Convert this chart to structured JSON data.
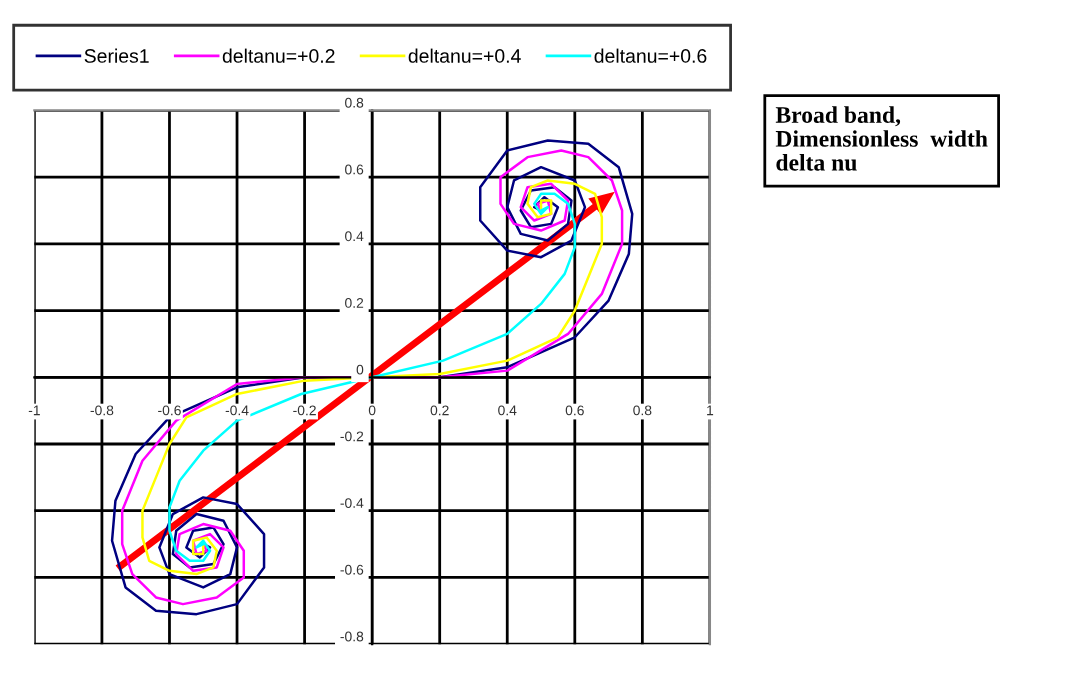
{
  "chart_data": {
    "type": "line",
    "series": [
      {
        "name": "Series1",
        "color": "#000080",
        "x": [
          -0.5,
          -0.48,
          -0.51,
          -0.55,
          -0.53,
          -0.47,
          -0.44,
          -0.47,
          -0.54,
          -0.59,
          -0.58,
          -0.52,
          -0.44,
          -0.4,
          -0.42,
          -0.5,
          -0.6,
          -0.63,
          -0.59,
          -0.5,
          -0.4,
          -0.32,
          -0.32,
          -0.4,
          -0.52,
          -0.64,
          -0.73,
          -0.77,
          -0.76,
          -0.7,
          -0.6,
          -0.4,
          -0.2,
          0,
          0.2,
          0.4,
          0.6,
          0.7,
          0.76,
          0.77,
          0.73,
          0.64,
          0.52,
          0.4,
          0.32,
          0.32,
          0.4,
          0.5,
          0.59,
          0.63,
          0.6,
          0.5,
          0.42,
          0.4,
          0.44,
          0.52,
          0.58,
          0.59,
          0.54,
          0.47,
          0.44,
          0.47,
          0.53,
          0.55,
          0.51,
          0.48,
          0.5
        ],
        "values": [
          -0.5,
          -0.51,
          -0.54,
          -0.51,
          -0.46,
          -0.45,
          -0.5,
          -0.56,
          -0.57,
          -0.53,
          -0.46,
          -0.41,
          -0.43,
          -0.51,
          -0.59,
          -0.63,
          -0.59,
          -0.51,
          -0.41,
          -0.36,
          -0.38,
          -0.47,
          -0.57,
          -0.68,
          -0.71,
          -0.7,
          -0.63,
          -0.49,
          -0.37,
          -0.23,
          -0.12,
          -0.03,
          0,
          0,
          0,
          0.03,
          0.12,
          0.23,
          0.37,
          0.49,
          0.63,
          0.7,
          0.71,
          0.68,
          0.57,
          0.47,
          0.38,
          0.36,
          0.41,
          0.51,
          0.59,
          0.63,
          0.59,
          0.51,
          0.43,
          0.41,
          0.46,
          0.53,
          0.57,
          0.56,
          0.5,
          0.45,
          0.46,
          0.51,
          0.54,
          0.51,
          0.5
        ]
      },
      {
        "name": "deltanu=+0.2",
        "color": "#ff00ff",
        "x": [
          -0.5,
          -0.49,
          -0.52,
          -0.53,
          -0.48,
          -0.44,
          -0.46,
          -0.53,
          -0.58,
          -0.57,
          -0.5,
          -0.42,
          -0.38,
          -0.38,
          -0.46,
          -0.56,
          -0.64,
          -0.71,
          -0.74,
          -0.74,
          -0.68,
          -0.58,
          -0.4,
          -0.2,
          0,
          0.2,
          0.4,
          0.58,
          0.68,
          0.74,
          0.74,
          0.71,
          0.64,
          0.56,
          0.46,
          0.38,
          0.38,
          0.42,
          0.5,
          0.57,
          0.58,
          0.53,
          0.46,
          0.44,
          0.48,
          0.53,
          0.52,
          0.49,
          0.5
        ],
        "values": [
          -0.5,
          -0.52,
          -0.53,
          -0.49,
          -0.47,
          -0.51,
          -0.57,
          -0.58,
          -0.53,
          -0.47,
          -0.44,
          -0.46,
          -0.52,
          -0.6,
          -0.66,
          -0.68,
          -0.66,
          -0.59,
          -0.5,
          -0.4,
          -0.25,
          -0.13,
          -0.02,
          0,
          0,
          0,
          0.02,
          0.13,
          0.25,
          0.4,
          0.5,
          0.59,
          0.66,
          0.68,
          0.66,
          0.6,
          0.52,
          0.46,
          0.44,
          0.47,
          0.53,
          0.58,
          0.57,
          0.51,
          0.47,
          0.49,
          0.53,
          0.52,
          0.5
        ]
      },
      {
        "name": "deltanu=+0.4",
        "color": "#ffff00",
        "x": [
          -0.5,
          -0.5,
          -0.53,
          -0.53,
          -0.49,
          -0.46,
          -0.47,
          -0.52,
          -0.6,
          -0.66,
          -0.68,
          -0.68,
          -0.64,
          -0.6,
          -0.55,
          -0.4,
          -0.2,
          0,
          0.2,
          0.4,
          0.55,
          0.6,
          0.64,
          0.68,
          0.68,
          0.66,
          0.6,
          0.52,
          0.47,
          0.46,
          0.49,
          0.53,
          0.53,
          0.5,
          0.5
        ],
        "values": [
          -0.5,
          -0.53,
          -0.53,
          -0.49,
          -0.48,
          -0.52,
          -0.57,
          -0.59,
          -0.58,
          -0.55,
          -0.48,
          -0.4,
          -0.3,
          -0.2,
          -0.12,
          -0.05,
          -0.01,
          0,
          0.01,
          0.05,
          0.12,
          0.2,
          0.3,
          0.4,
          0.48,
          0.55,
          0.58,
          0.59,
          0.57,
          0.52,
          0.48,
          0.49,
          0.53,
          0.53,
          0.5
        ]
      },
      {
        "name": "deltanu=+0.6",
        "color": "#00ffff",
        "x": [
          -0.5,
          -0.52,
          -0.5,
          -0.48,
          -0.5,
          -0.54,
          -0.58,
          -0.6,
          -0.6,
          -0.57,
          -0.5,
          -0.4,
          -0.21,
          0,
          0.21,
          0.4,
          0.5,
          0.57,
          0.6,
          0.6,
          0.58,
          0.54,
          0.5,
          0.48,
          0.5,
          0.52,
          0.5
        ],
        "values": [
          -0.5,
          -0.51,
          -0.49,
          -0.52,
          -0.55,
          -0.55,
          -0.52,
          -0.46,
          -0.39,
          -0.31,
          -0.22,
          -0.13,
          -0.05,
          0,
          0.05,
          0.13,
          0.22,
          0.31,
          0.39,
          0.46,
          0.52,
          0.55,
          0.55,
          0.52,
          0.49,
          0.51,
          0.5
        ]
      }
    ],
    "xlim": [
      -1,
      1
    ],
    "ylim": [
      -0.8,
      0.8
    ],
    "xticks": [
      -1,
      -0.8,
      -0.6,
      -0.4,
      -0.2,
      0,
      0.2,
      0.4,
      0.6,
      0.8,
      1
    ],
    "yticks": [
      -0.8,
      -0.6,
      -0.4,
      -0.2,
      0,
      0.2,
      0.4,
      0.6,
      0.8
    ],
    "grid": true,
    "legend": "top",
    "marker": "none",
    "line_style": "solid",
    "annotations": [
      "Broad band,\nDimensionless  width\ndelta nu"
    ]
  }
}
